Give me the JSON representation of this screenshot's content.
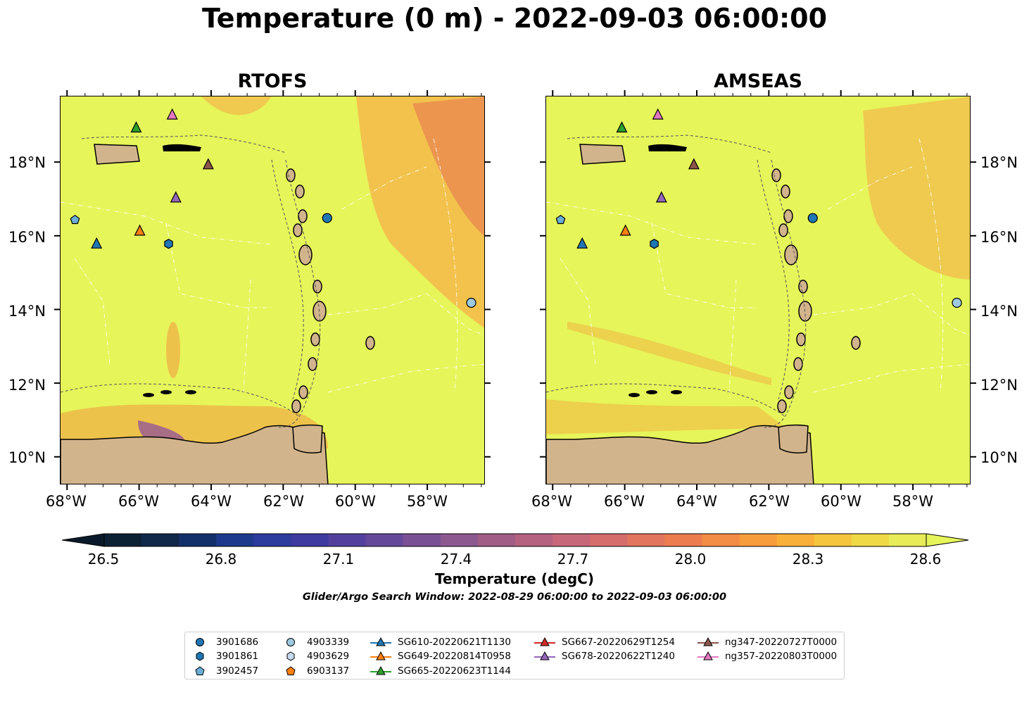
{
  "title": "Temperature (0 m) - 2022-09-03 06:00:00",
  "panels": [
    {
      "title": "RTOFS"
    },
    {
      "title": "AMSEAS"
    }
  ],
  "axes": {
    "lon_labels": [
      "68°W",
      "66°W",
      "64°W",
      "62°W",
      "60°W",
      "58°W"
    ],
    "lat_labels": [
      "18°N",
      "16°N",
      "14°N",
      "12°N",
      "10°N"
    ]
  },
  "colorbar": {
    "label": "Temperature (degC)",
    "ticks": [
      "26.5",
      "26.8",
      "27.1",
      "27.4",
      "27.7",
      "28.0",
      "28.3",
      "28.6"
    ],
    "min": 26.5,
    "max": 28.6,
    "colors": [
      "#0d2135",
      "#102849",
      "#13306a",
      "#1d3a8c",
      "#2c3b9e",
      "#3f3aa0",
      "#53409e",
      "#66489b",
      "#7a5094",
      "#8d5890",
      "#a15d86",
      "#b4627f",
      "#c6687a",
      "#d66d6d",
      "#e2755d",
      "#ec7c4e",
      "#f38c44",
      "#f79d3c",
      "#f8b03a",
      "#f5c53e",
      "#efd944",
      "#e8ec56"
    ],
    "under_color": "#0a1a2a",
    "over_color": "#e6f55a"
  },
  "search_window": "Glider/Argo Search Window: 2022-08-29 06:00:00 to 2022-09-03 06:00:00",
  "legend": {
    "columns": [
      [
        {
          "label": "3901686",
          "marker": "circle",
          "color": "#1f77b4"
        },
        {
          "label": "3901861",
          "marker": "hexagon",
          "color": "#1f77b4"
        },
        {
          "label": "3902457",
          "marker": "pentagon",
          "color": "#6baed6"
        }
      ],
      [
        {
          "label": "4903339",
          "marker": "circle",
          "color": "#9ecae1"
        },
        {
          "label": "4903629",
          "marker": "hexagon",
          "color": "#c6dbef"
        },
        {
          "label": "6903137",
          "marker": "pentagon",
          "color": "#ff7f0e"
        }
      ],
      [
        {
          "label": "SG610-20220621T1130",
          "marker": "triangle-line",
          "color": "#1f77b4"
        },
        {
          "label": "SG649-20220814T0958",
          "marker": "triangle-line",
          "color": "#ff7f0e"
        },
        {
          "label": "SG665-20220623T1144",
          "marker": "triangle-line",
          "color": "#2ca02c"
        }
      ],
      [
        {
          "label": "SG667-20220629T1254",
          "marker": "triangle-line",
          "color": "#d62728"
        },
        {
          "label": "SG678-20220622T1240",
          "marker": "triangle-line",
          "color": "#9467bd"
        }
      ],
      [
        {
          "label": "ng347-20220727T0000",
          "marker": "triangle-line",
          "color": "#8c564b"
        },
        {
          "label": "ng357-20220803T0000",
          "marker": "triangle-line",
          "color": "#e377c2"
        }
      ]
    ]
  },
  "map_colors": {
    "land": "#d2b48c",
    "sea_base": "#e6f55a",
    "warm": "#f2a040",
    "hot": "#e0705a",
    "cold": "#7a3fa0",
    "river": "#9ab8d8"
  },
  "markers": [
    {
      "name": "3901686",
      "shape": "circle",
      "color": "#1f77b4",
      "lon": -60.8,
      "lat": 16.5
    },
    {
      "name": "3901861",
      "shape": "hexagon",
      "color": "#1f77b4",
      "lon": -65.2,
      "lat": 15.8
    },
    {
      "name": "3902457",
      "shape": "pentagon",
      "color": "#6baed6",
      "lon": -67.8,
      "lat": 16.45
    },
    {
      "name": "4903339",
      "shape": "circle",
      "color": "#9ecae1",
      "lon": -56.8,
      "lat": 14.2
    },
    {
      "name": "SG610",
      "shape": "triangle",
      "color": "#1f77b4",
      "lon": -67.2,
      "lat": 15.8
    },
    {
      "name": "SG649",
      "shape": "triangle",
      "color": "#ff7f0e",
      "lon": -66.0,
      "lat": 16.15
    },
    {
      "name": "SG665",
      "shape": "triangle",
      "color": "#2ca02c",
      "lon": -66.1,
      "lat": 18.95
    },
    {
      "name": "SG678",
      "shape": "triangle",
      "color": "#9467bd",
      "lon": -65.0,
      "lat": 17.05
    },
    {
      "name": "ng347",
      "shape": "triangle",
      "color": "#8c564b",
      "lon": -64.1,
      "lat": 17.95
    },
    {
      "name": "ng357",
      "shape": "triangle",
      "color": "#e377c2",
      "lon": -65.1,
      "lat": 19.3
    }
  ]
}
